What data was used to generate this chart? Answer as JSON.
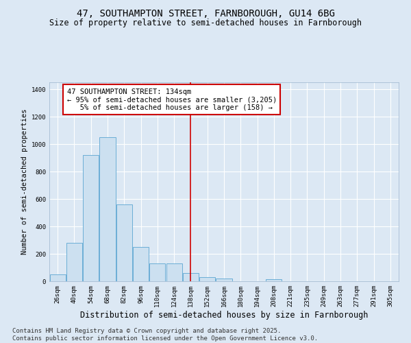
{
  "title": "47, SOUTHAMPTON STREET, FARNBOROUGH, GU14 6BG",
  "subtitle": "Size of property relative to semi-detached houses in Farnborough",
  "xlabel": "Distribution of semi-detached houses by size in Farnborough",
  "ylabel": "Number of semi-detached properties",
  "categories": [
    "26sqm",
    "40sqm",
    "54sqm",
    "68sqm",
    "82sqm",
    "96sqm",
    "110sqm",
    "124sqm",
    "138sqm",
    "152sqm",
    "166sqm",
    "180sqm",
    "194sqm",
    "208sqm",
    "221sqm",
    "235sqm",
    "249sqm",
    "263sqm",
    "277sqm",
    "291sqm",
    "305sqm"
  ],
  "values": [
    50,
    280,
    920,
    1050,
    560,
    250,
    130,
    130,
    60,
    30,
    20,
    0,
    0,
    15,
    0,
    0,
    0,
    0,
    0,
    0,
    0
  ],
  "bar_color": "#cce0f0",
  "bar_edge_color": "#6baed6",
  "vline_color": "#cc0000",
  "vline_x": 8.0,
  "annotation_line1": "47 SOUTHAMPTON STREET: 134sqm",
  "annotation_line2": "← 95% of semi-detached houses are smaller (3,205)",
  "annotation_line3": "   5% of semi-detached houses are larger (158) →",
  "annotation_box_color": "#ffffff",
  "annotation_box_edge": "#cc0000",
  "ylim": [
    0,
    1450
  ],
  "yticks": [
    0,
    200,
    400,
    600,
    800,
    1000,
    1200,
    1400
  ],
  "footnote": "Contains HM Land Registry data © Crown copyright and database right 2025.\nContains public sector information licensed under the Open Government Licence v3.0.",
  "bg_color": "#dce8f4",
  "plot_bg_color": "#dce8f4",
  "grid_color": "#ffffff",
  "title_fontsize": 10,
  "subtitle_fontsize": 8.5,
  "xlabel_fontsize": 8.5,
  "ylabel_fontsize": 7.5,
  "tick_fontsize": 6.5,
  "footnote_fontsize": 6.5,
  "annot_fontsize": 7.5
}
